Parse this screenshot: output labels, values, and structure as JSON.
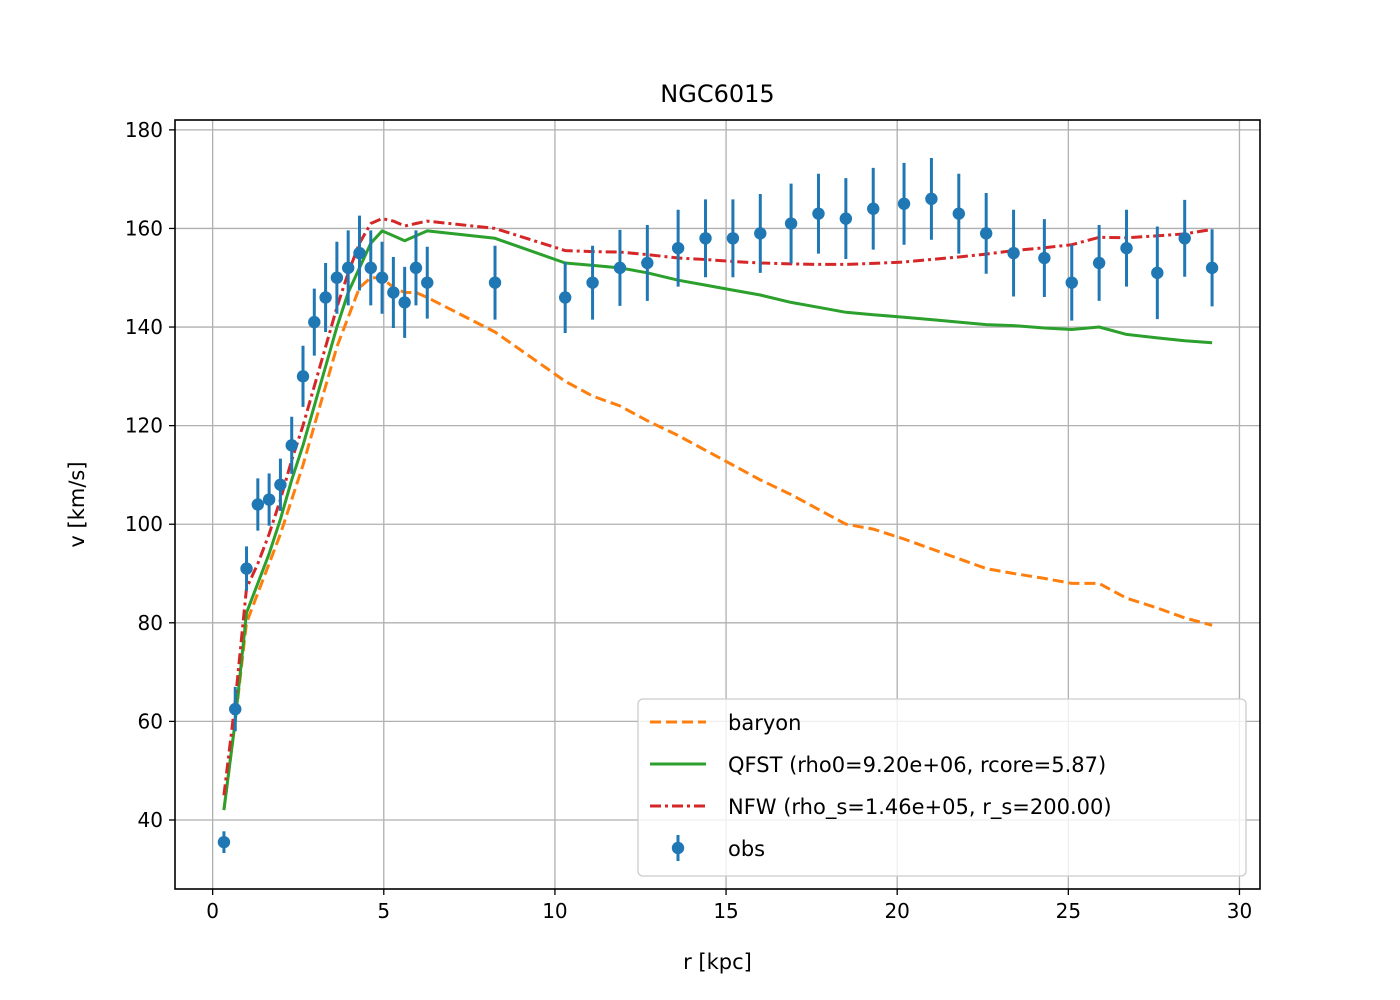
{
  "chart_data": {
    "type": "line",
    "title": "NGC6015",
    "xlabel": "r [kpc]",
    "ylabel": "v [km/s]",
    "xlim": [
      -1.1,
      30.6
    ],
    "ylim": [
      26,
      182
    ],
    "xticks": [
      0,
      5,
      10,
      15,
      20,
      25,
      30
    ],
    "yticks": [
      40,
      60,
      80,
      100,
      120,
      140,
      160,
      180
    ],
    "grid": true,
    "legend_position": "lower-right",
    "obs": {
      "name": "obs",
      "color": "#1f77b4",
      "x": [
        0.33,
        0.66,
        0.99,
        1.32,
        1.65,
        1.98,
        2.31,
        2.64,
        2.97,
        3.3,
        3.63,
        3.96,
        4.29,
        4.62,
        4.95,
        5.28,
        5.61,
        5.94,
        6.27,
        8.25,
        10.3,
        11.1,
        11.9,
        12.7,
        13.6,
        14.4,
        15.2,
        16.0,
        16.9,
        17.7,
        18.5,
        19.3,
        20.2,
        21.0,
        21.8,
        22.6,
        23.4,
        24.3,
        25.1,
        25.9,
        26.7,
        27.6,
        28.4,
        29.2
      ],
      "y": [
        35.5,
        62.5,
        91,
        104,
        105,
        108,
        116,
        130,
        141,
        146,
        150,
        152,
        155,
        152,
        150,
        147,
        145,
        152,
        149,
        149,
        146,
        149,
        152,
        153,
        156,
        158,
        158,
        159,
        161,
        163,
        162,
        164,
        165,
        166,
        163,
        159,
        155,
        154,
        149,
        153,
        156,
        151,
        158,
        152
      ],
      "err": [
        2.2,
        4.5,
        4.5,
        5.3,
        5.3,
        5.3,
        5.8,
        6.2,
        6.8,
        7.0,
        7.3,
        7.6,
        7.6,
        7.6,
        7.3,
        7.2,
        7.2,
        7.6,
        7.3,
        7.5,
        7.2,
        7.5,
        7.7,
        7.7,
        7.8,
        7.9,
        7.9,
        8.0,
        8.1,
        8.1,
        8.2,
        8.3,
        8.3,
        8.3,
        8.1,
        8.2,
        8.8,
        7.9,
        7.7,
        7.7,
        7.8,
        9.4,
        7.8,
        7.8
      ]
    },
    "series": [
      {
        "name": "baryon",
        "color": "#ff7f0e",
        "style": "dashed",
        "x": [
          0.33,
          0.66,
          0.99,
          1.32,
          1.65,
          1.98,
          2.31,
          2.64,
          2.97,
          3.3,
          3.63,
          3.96,
          4.29,
          4.62,
          4.95,
          5.28,
          5.61,
          5.94,
          6.27,
          8.25,
          10.3,
          11.1,
          11.9,
          12.7,
          13.6,
          14.4,
          15.2,
          16.0,
          16.9,
          17.7,
          18.5,
          19.3,
          20.2,
          21.0,
          21.8,
          22.6,
          23.4,
          24.3,
          25.1,
          25.9,
          26.7,
          27.6,
          28.4,
          29.2
        ],
        "y": [
          42,
          60,
          80,
          86,
          92,
          98,
          105,
          112,
          120,
          128,
          136,
          142,
          148,
          150,
          150,
          148,
          147,
          147,
          146,
          139,
          129,
          126,
          124,
          121,
          118,
          115,
          112,
          109,
          106,
          103,
          100,
          99,
          97,
          95,
          93,
          91,
          90,
          89,
          88,
          88,
          85,
          83,
          81,
          79.5
        ]
      },
      {
        "name": "QFST (rho0=9.20e+06, rcore=5.87)",
        "color": "#2ca02c",
        "style": "solid",
        "x": [
          0.33,
          0.66,
          0.99,
          1.32,
          1.65,
          1.98,
          2.31,
          2.64,
          2.97,
          3.3,
          3.63,
          3.96,
          4.29,
          4.62,
          4.95,
          5.28,
          5.61,
          5.94,
          6.27,
          8.25,
          10.3,
          11.1,
          11.9,
          12.7,
          13.6,
          14.4,
          15.2,
          16.0,
          16.9,
          17.7,
          18.5,
          19.3,
          20.2,
          21.0,
          21.8,
          22.6,
          23.4,
          24.3,
          25.1,
          25.9,
          26.7,
          27.6,
          28.4,
          29.2
        ],
        "y": [
          42,
          60,
          82,
          88,
          94,
          101,
          109,
          116,
          124,
          132,
          140,
          147,
          152,
          157,
          159.5,
          158.5,
          157.5,
          158.5,
          159.5,
          158,
          153,
          152.5,
          152,
          151,
          149.5,
          148.5,
          147.5,
          146.5,
          145,
          144,
          143,
          142.5,
          142,
          141.5,
          141,
          140.5,
          140.3,
          139.8,
          139.5,
          140,
          138.5,
          137.8,
          137.2,
          136.8
        ]
      },
      {
        "name": "NFW (rho_s=1.46e+05, r_s=200.00)",
        "color": "#d62728",
        "style": "dashdot",
        "x": [
          0.33,
          0.66,
          0.99,
          1.32,
          1.65,
          1.98,
          2.31,
          2.64,
          2.97,
          3.3,
          3.63,
          3.96,
          4.29,
          4.62,
          4.95,
          5.28,
          5.61,
          5.94,
          6.27,
          8.25,
          10.3,
          11.1,
          11.9,
          12.7,
          13.6,
          14.4,
          15.2,
          16.0,
          16.9,
          17.7,
          18.5,
          19.3,
          20.2,
          21.0,
          21.8,
          22.6,
          23.4,
          24.3,
          25.1,
          25.9,
          26.7,
          27.6,
          28.4,
          29.2
        ],
        "y": [
          45,
          64,
          87,
          92,
          98,
          105,
          113,
          120,
          128,
          136,
          144,
          151,
          157,
          161,
          162,
          161.5,
          160.5,
          161,
          161.5,
          160,
          155.5,
          155.3,
          155.2,
          154.7,
          154,
          153.7,
          153.3,
          153,
          152.8,
          152.7,
          152.7,
          152.9,
          153.2,
          153.7,
          154.2,
          154.8,
          155.5,
          156.1,
          156.7,
          158.2,
          158.1,
          158.5,
          158.9,
          159.8
        ]
      }
    ]
  }
}
